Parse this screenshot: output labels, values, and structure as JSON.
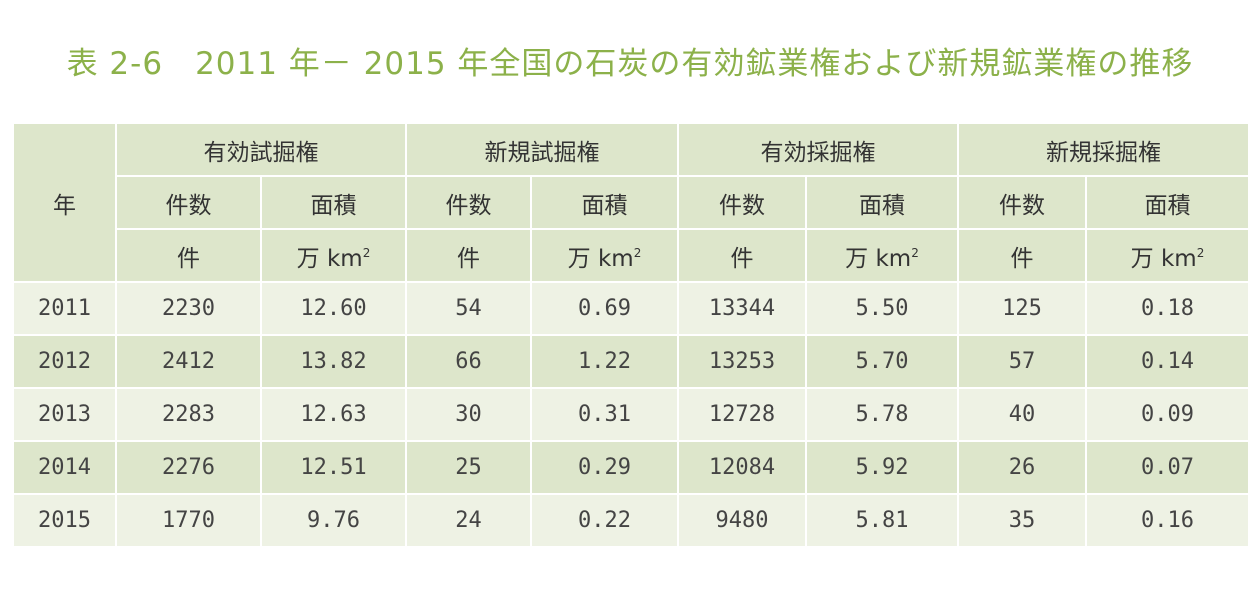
{
  "title": "表 2-6　2011 年－ 2015 年全国の石炭の有効鉱業権および新規鉱業権の推移",
  "header": {
    "year": "年",
    "groups": [
      "有効試掘権",
      "新規試掘権",
      "有効採掘権",
      "新規採掘権"
    ],
    "count_label": "件数",
    "area_label": "面積",
    "count_unit": "件",
    "area_unit": "万 km",
    "area_unit_sup": "2"
  },
  "rows": [
    {
      "year": "2011",
      "c1": "2230",
      "a1": "12.60",
      "c2": "54",
      "a2": "0.69",
      "c3": "13344",
      "a3": "5.50",
      "c4": "125",
      "a4": "0.18"
    },
    {
      "year": "2012",
      "c1": "2412",
      "a1": "13.82",
      "c2": "66",
      "a2": "1.22",
      "c3": "13253",
      "a3": "5.70",
      "c4": "57",
      "a4": "0.14"
    },
    {
      "year": "2013",
      "c1": "2283",
      "a1": "12.63",
      "c2": "30",
      "a2": "0.31",
      "c3": "12728",
      "a3": "5.78",
      "c4": "40",
      "a4": "0.09"
    },
    {
      "year": "2014",
      "c1": "2276",
      "a1": "12.51",
      "c2": "25",
      "a2": "0.29",
      "c3": "12084",
      "a3": "5.92",
      "c4": "26",
      "a4": "0.07"
    },
    {
      "year": "2015",
      "c1": "1770",
      "a1": "9.76",
      "c2": "24",
      "a2": "0.22",
      "c3": "9480",
      "a3": "5.81",
      "c4": "35",
      "a4": "0.16"
    }
  ],
  "colors": {
    "title": "#8cb14a",
    "header_bg": "#dde6cb",
    "row_light": "#eef2e4",
    "row_dark": "#dde6cb"
  }
}
